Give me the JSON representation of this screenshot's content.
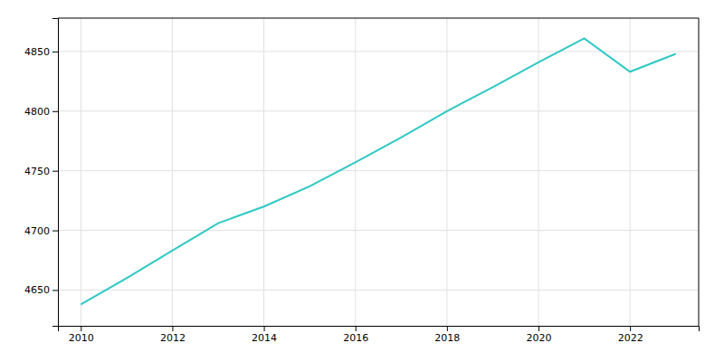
{
  "chart_data": {
    "type": "line",
    "x": [
      2010,
      2011,
      2012,
      2013,
      2014,
      2015,
      2016,
      2017,
      2018,
      2019,
      2020,
      2021,
      2022,
      2023
    ],
    "values": [
      4638,
      4660,
      4683,
      4706,
      4720,
      4737,
      4757,
      4778,
      4800,
      4820,
      4841,
      4861,
      4833,
      4848
    ],
    "color": "#2ec8c4",
    "xlim": [
      2009.5,
      2023.5
    ],
    "ylim": [
      4620,
      4878
    ],
    "xticks": [
      2010,
      2012,
      2014,
      2016,
      2018,
      2020,
      2022
    ],
    "yticks": [
      4650,
      4700,
      4750,
      4800,
      4850
    ],
    "grid": true
  }
}
